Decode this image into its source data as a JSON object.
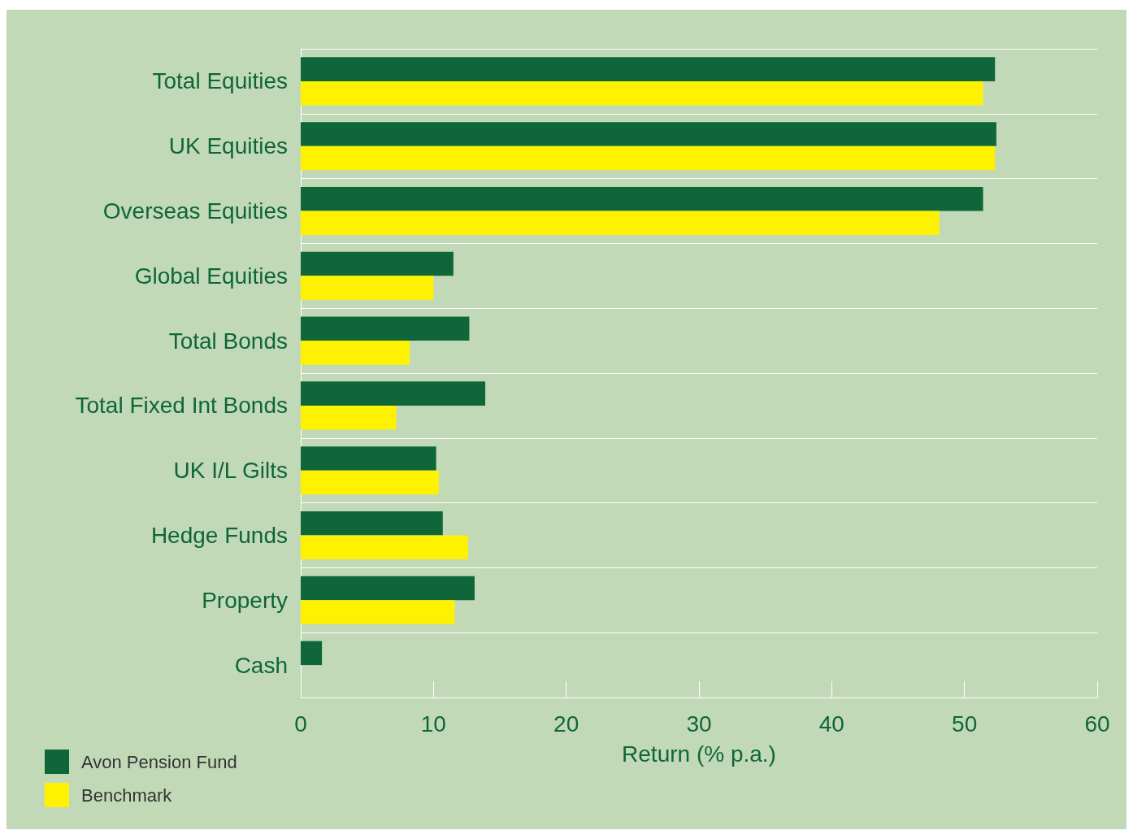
{
  "chart_data": {
    "type": "bar",
    "orientation": "horizontal",
    "xlabel": "Return (% p.a.)",
    "categories": [
      "Total Equities",
      "UK Equities",
      "Overseas Equities",
      "Global Equities",
      "Total Bonds",
      "Total Fixed Int Bonds",
      "UK I/L Gilts",
      "Hedge Funds",
      "Property",
      "Cash"
    ],
    "series": [
      {
        "name": "Avon Pension Fund",
        "color": "#0e6639",
        "values": [
          52.3,
          52.4,
          51.4,
          11.5,
          12.7,
          13.9,
          10.2,
          10.7,
          13.1,
          1.6
        ]
      },
      {
        "name": "Benchmark",
        "color": "#fff200",
        "values": [
          51.4,
          52.3,
          48.1,
          10.0,
          8.2,
          7.2,
          10.4,
          12.6,
          11.6,
          null
        ]
      }
    ],
    "xlim": [
      0,
      60
    ],
    "xticks": [
      0,
      10,
      20,
      30,
      40,
      50,
      60
    ],
    "grid": "y",
    "legend": "bottom left"
  }
}
